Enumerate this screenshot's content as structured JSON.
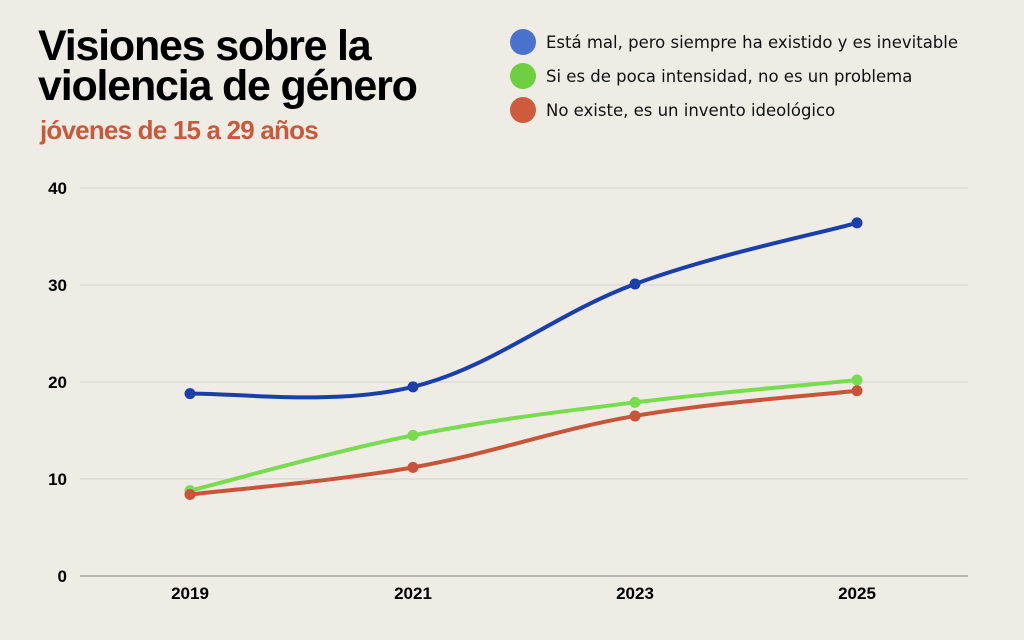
{
  "header": {
    "title_line1": "Visiones sobre la",
    "title_line2": "violencia de género",
    "subtitle": "jóvenes de 15 a 29 años"
  },
  "legend": [
    {
      "label": "Está mal, pero siempre ha existido y es inevitable",
      "color": "#4a72cc"
    },
    {
      "label": "Si es de poca intensidad, no es un problema",
      "color": "#6fcf43"
    },
    {
      "label": "No existe, es un invento ideológico",
      "color": "#cf5b3d"
    }
  ],
  "chart_data": {
    "type": "line",
    "title": "Visiones sobre la violencia de género",
    "subtitle": "jóvenes de 15 a 29 años",
    "xlabel": "",
    "ylabel": "",
    "categories": [
      "2019",
      "2021",
      "2023",
      "2025"
    ],
    "ylim": [
      0,
      40
    ],
    "yticks": [
      0,
      10,
      20,
      30,
      40
    ],
    "grid": true,
    "legend_position": "top-right",
    "series": [
      {
        "name": "Está mal, pero siempre ha existido y es inevitable",
        "color": "#1a3faa",
        "values": [
          18.8,
          19.5,
          30.1,
          36.4
        ]
      },
      {
        "name": "Si es de poca intensidad, no es un problema",
        "color": "#78dc50",
        "values": [
          8.8,
          14.5,
          17.9,
          20.2
        ]
      },
      {
        "name": "No existe, es un invento ideológico",
        "color": "#c8553a",
        "values": [
          8.4,
          11.2,
          16.5,
          19.1
        ]
      }
    ]
  }
}
